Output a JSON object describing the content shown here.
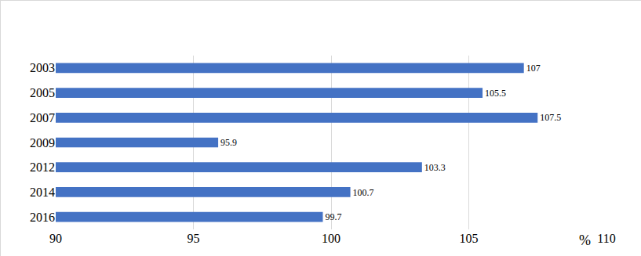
{
  "chart_data": {
    "type": "bar",
    "orientation": "horizontal",
    "categories": [
      "2003",
      "2005",
      "2007",
      "2009",
      "2012",
      "2014",
      "2016"
    ],
    "values": [
      107,
      105.5,
      107.5,
      95.9,
      103.3,
      100.7,
      99.7
    ],
    "color": "#4472c4",
    "x_label": "%",
    "xlim": [
      90,
      110
    ],
    "xticks": [
      90,
      95,
      100,
      105,
      110
    ],
    "grid": true,
    "data_labels": true
  }
}
